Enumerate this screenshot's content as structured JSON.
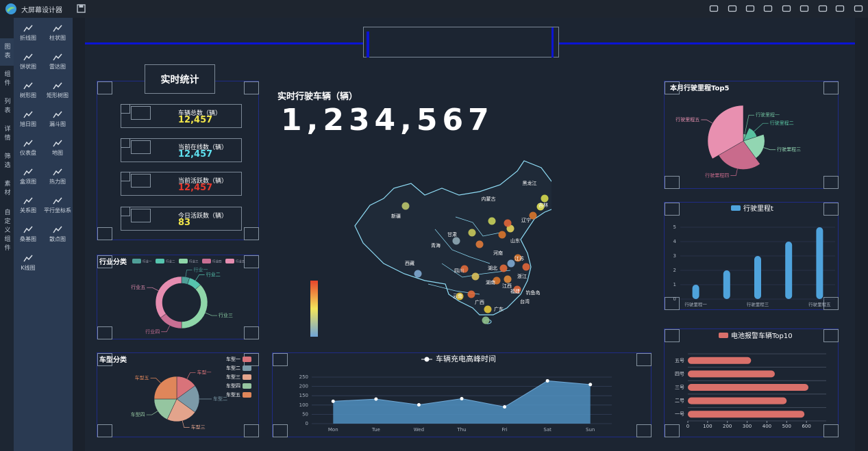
{
  "app": {
    "title": "大屏幕设计器"
  },
  "sidebar": {
    "tabs": [
      "图表",
      "组件",
      "列表",
      "详情",
      "筛选",
      "素材",
      "自定义组件"
    ],
    "items": [
      "折线图",
      "柱状图",
      "饼状图",
      "雷达图",
      "树形图",
      "矩形树图",
      "旭日图",
      "漏斗图",
      "仪表盘",
      "地图",
      "盒须图",
      "热力图",
      "关系图",
      "平行坐标系",
      "桑基图",
      "散点图",
      "K线图"
    ]
  },
  "stats": {
    "title": "实时统计",
    "items": [
      {
        "label": "车辆总数（辆）",
        "value": "12,457",
        "color": "#f2e64a"
      },
      {
        "label": "当前在线数（辆）",
        "value": "12,457",
        "color": "#5fe0ef"
      },
      {
        "label": "当前活跃数（辆）",
        "value": "12,457",
        "color": "#e5382d"
      },
      {
        "label": "今日活跃数（辆）",
        "value": "83",
        "color": "#f2e64a"
      }
    ]
  },
  "counter": {
    "title": "实时行驶车辆（辆）",
    "value": "1,234,567"
  },
  "map": {
    "labels": [
      "新疆",
      "西藏",
      "青海",
      "甘肃",
      "内蒙古",
      "黑龙江",
      "吉林",
      "辽宁",
      "山东",
      "河南",
      "江苏",
      "湖北",
      "四川",
      "浙江",
      "湖南",
      "江西",
      "福建",
      "钓鱼岛",
      "台湾",
      "云南",
      "广西",
      "广东"
    ]
  },
  "chart_data": [
    {
      "type": "donut",
      "title": "行业分类",
      "categories": [
        "行业一",
        "行业二",
        "行业三",
        "行业四",
        "行业五"
      ],
      "values": [
        5,
        8,
        37,
        15,
        35
      ],
      "colors": [
        "#4f9f98",
        "#56c4ae",
        "#8fd6a9",
        "#c86f93",
        "#e58db0"
      ]
    },
    {
      "type": "pie",
      "title": "车型分类",
      "categories": [
        "车型一",
        "车型二",
        "车型三",
        "车型四",
        "车型五"
      ],
      "values": [
        15,
        20,
        22,
        18,
        25
      ],
      "colors": [
        "#d9737a",
        "#7c9aa8",
        "#e3a48c",
        "#95c5a0",
        "#df865a"
      ]
    },
    {
      "type": "line",
      "categories": [
        "Mon",
        "Tue",
        "Wed",
        "Thu",
        "Fri",
        "Sat",
        "Sun"
      ],
      "series": [
        {
          "name": "车辆充电高峰时间",
          "color": "#4f8fc0",
          "values": [
            120,
            132,
            101,
            134,
            90,
            230,
            210
          ]
        }
      ],
      "ylim": [
        0,
        250
      ],
      "yticks": [
        0,
        50,
        100,
        150,
        200,
        250
      ]
    },
    {
      "type": "rose",
      "title": "本月行驶里程Top5",
      "categories": [
        "行驶里程一",
        "行驶里程二",
        "行驶里程三",
        "行驶里程四",
        "行驶里程五"
      ],
      "values": [
        1,
        2,
        3,
        4,
        5
      ],
      "colors": [
        "#6fbf9c",
        "#58c19f",
        "#92d6b2",
        "#c96b8c",
        "#e890b0"
      ]
    },
    {
      "type": "bar",
      "categories": [
        "行驶里程一",
        null,
        "行驶里程三",
        null,
        "行驶里程五"
      ],
      "series": [
        {
          "name": "行驶里程t",
          "color": "#4fa3dc",
          "values": [
            1,
            2,
            3,
            4,
            5
          ]
        }
      ],
      "ylim": [
        0,
        5
      ],
      "yticks": [
        0,
        1,
        2,
        3,
        4,
        5
      ]
    },
    {
      "type": "hbar",
      "categories": [
        "一号",
        "二号",
        "三号",
        "四号",
        "五号"
      ],
      "series": [
        {
          "name": "电池报警车辆Top10",
          "color": "#d9706a",
          "values": [
            590,
            500,
            610,
            440,
            320
          ]
        }
      ],
      "xlim": [
        0,
        700
      ],
      "xticks": [
        0,
        100,
        200,
        300,
        400,
        500,
        600
      ]
    }
  ]
}
